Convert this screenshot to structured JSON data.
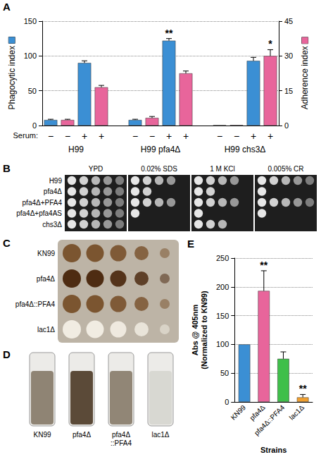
{
  "chart_data": [
    {
      "panel": "A",
      "type": "bar",
      "categories": [
        "−",
        "−",
        "+",
        "+",
        null,
        "−",
        "−",
        "+",
        "+",
        null,
        "−",
        "−",
        "+",
        "+"
      ],
      "category_title": "Serum:",
      "groups": [
        "H99",
        "H99 pfa4Δ",
        "H99 chs3Δ"
      ],
      "ylabel": "Phagocytic index",
      "y2label": "Adherence index",
      "series": [
        {
          "color": "#3b8fd4",
          "axis": "y",
          "values": [
            8,
            null,
            90,
            null,
            null,
            8,
            null,
            122,
            null,
            null,
            0.5,
            null,
            93,
            null
          ],
          "errors": [
            1,
            null,
            3,
            null,
            null,
            1,
            null,
            3,
            null,
            null,
            null,
            null,
            5,
            null
          ],
          "annotations": [
            null,
            null,
            null,
            null,
            null,
            null,
            null,
            "**",
            null,
            null,
            null,
            null,
            null,
            null
          ]
        },
        {
          "color": "#e8659b",
          "axis": "y2",
          "values": [
            null,
            2.4,
            null,
            16.5,
            null,
            null,
            3.3,
            null,
            22.5,
            null,
            null,
            0.2,
            null,
            30
          ],
          "errors": [
            null,
            0.3,
            null,
            0.8,
            null,
            null,
            0.6,
            null,
            1,
            null,
            null,
            null,
            null,
            2.7
          ],
          "annotations": [
            null,
            null,
            null,
            null,
            null,
            null,
            null,
            null,
            null,
            null,
            null,
            null,
            null,
            "*"
          ]
        }
      ],
      "ylim": [
        0,
        150
      ],
      "yticks": [
        0,
        50,
        100,
        150
      ],
      "y2lim": [
        0,
        45
      ],
      "y2ticks": [
        0,
        15,
        30,
        45
      ],
      "grid": true
    },
    {
      "panel": "E",
      "type": "bar",
      "categories": [
        "KN99",
        "pfa4Δ",
        "pfa4Δ::PFA4",
        "lac1Δ"
      ],
      "values": [
        100,
        193,
        75,
        8
      ],
      "errors": [
        null,
        35,
        12,
        5
      ],
      "annotations": [
        null,
        "**",
        null,
        "**"
      ],
      "colors": [
        "#3b8fd4",
        "#e8659b",
        "#3fbf4a",
        "#f0a030"
      ],
      "ylabel": [
        "Abs @ 405nm",
        "(Normalized to KN99)"
      ],
      "xlabel": "Strains",
      "ylim": [
        0,
        250
      ],
      "yticks": [
        0,
        50,
        100,
        150,
        200,
        250
      ],
      "grid": true
    }
  ],
  "spot_assay": {
    "panel": "B",
    "rows": [
      "H99",
      "pfa4Δ",
      "pfa4Δ+PFA4",
      "pfa4Δ+pfa4AS",
      "chs3Δ"
    ],
    "columns": [
      {
        "label": "YPD",
        "growth": [
          5,
          5,
          5,
          5,
          5
        ]
      },
      {
        "label": "0.02% SDS",
        "growth": [
          4,
          2,
          4,
          1,
          0
        ]
      },
      {
        "label": "1 M KCl",
        "growth": [
          4,
          2,
          4,
          1,
          3
        ]
      },
      {
        "label": "0.005% CR",
        "growth": [
          5,
          1,
          5,
          1,
          0
        ]
      }
    ]
  },
  "plate": {
    "panel": "C",
    "rows": [
      {
        "label": "KN99",
        "color": "#7b5530"
      },
      {
        "label": "pfa4Δ",
        "color": "#4e2c12"
      },
      {
        "label": "pfa4Δ::PFA4",
        "color": "#7b5530"
      },
      {
        "label": "lac1Δ",
        "color": "#f1ece2"
      }
    ]
  },
  "tubes": {
    "panel": "D",
    "items": [
      {
        "label": "KN99",
        "color": "#8f8474"
      },
      {
        "label": "pfa4Δ",
        "color": "#5b4a38"
      },
      {
        "label": "pfa4Δ::PFA4",
        "color": "#918676"
      },
      {
        "label": "lac1Δ",
        "color": "#d8d8d2"
      }
    ]
  }
}
